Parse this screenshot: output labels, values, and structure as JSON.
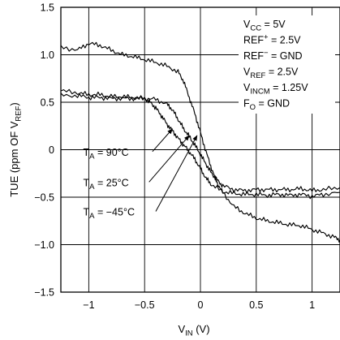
{
  "chart_data": {
    "type": "line",
    "xlabel": {
      "main": "V",
      "sub": "IN",
      "tail": " (V)"
    },
    "ylabel": {
      "main": "TUE (ppm OF V",
      "sub": "REF",
      "tail": ")"
    },
    "xlim": [
      -1.25,
      1.25
    ],
    "ylim": [
      -1.5,
      1.5
    ],
    "x_ticks": [
      {
        "value": -1,
        "label": "−1"
      },
      {
        "value": -0.5,
        "label": "−0.5"
      },
      {
        "value": 0,
        "label": "0"
      },
      {
        "value": 0.5,
        "label": "0.5"
      },
      {
        "value": 1,
        "label": "1"
      }
    ],
    "y_ticks": [
      {
        "value": 1.5,
        "label": "1.5"
      },
      {
        "value": 1.0,
        "label": "1.0"
      },
      {
        "value": 0.5,
        "label": "0.5"
      },
      {
        "value": 0,
        "label": "0"
      },
      {
        "value": -0.5,
        "label": "−0.5"
      },
      {
        "value": -1.0,
        "label": "−1.0"
      },
      {
        "value": -1.5,
        "label": "−1.5"
      }
    ],
    "grid": true,
    "conditions": [
      {
        "main": "V",
        "sub": "CC",
        "sup": "",
        "tail": " = 5V"
      },
      {
        "main": "REF",
        "sub": "",
        "sup": "+",
        "tail": " = 2.5V"
      },
      {
        "main": "REF",
        "sub": "",
        "sup": "−",
        "tail": " = GND"
      },
      {
        "main": "V",
        "sub": "REF",
        "sup": "",
        "tail": " = 2.5V"
      },
      {
        "main": "V",
        "sub": "INCM",
        "sup": "",
        "tail": " = 1.25V"
      },
      {
        "main": "F",
        "sub": "O",
        "sup": "",
        "tail": " = GND"
      }
    ],
    "series": [
      {
        "name": "T_A = 90°C",
        "label": {
          "main": "T",
          "sub": "A",
          "tail": " = 90°C"
        },
        "x": [
          -1.25,
          -1.1,
          -1.0,
          -0.9,
          -0.8,
          -0.7,
          -0.6,
          -0.5,
          -0.45,
          -0.4,
          -0.35,
          -0.3,
          -0.25,
          -0.2,
          -0.15,
          -0.1,
          -0.05,
          0.0,
          0.05,
          0.1,
          0.2,
          0.3,
          0.4,
          0.5,
          0.6,
          0.7,
          0.8,
          0.9,
          1.0,
          1.1,
          1.25
        ],
        "y": [
          0.62,
          0.6,
          0.58,
          0.58,
          0.56,
          0.56,
          0.55,
          0.54,
          0.5,
          0.44,
          0.36,
          0.27,
          0.2,
          0.12,
          0.05,
          -0.02,
          -0.1,
          -0.2,
          -0.3,
          -0.37,
          -0.44,
          -0.46,
          -0.47,
          -0.47,
          -0.48,
          -0.47,
          -0.48,
          -0.47,
          -0.49,
          -0.47,
          -0.45
        ]
      },
      {
        "name": "T_A = 25°C",
        "label": {
          "main": "T",
          "sub": "A",
          "tail": " = 25°C"
        },
        "x": [
          -1.25,
          -1.1,
          -1.0,
          -0.9,
          -0.8,
          -0.7,
          -0.6,
          -0.5,
          -0.4,
          -0.3,
          -0.25,
          -0.2,
          -0.15,
          -0.1,
          -0.05,
          0.0,
          0.05,
          0.1,
          0.15,
          0.2,
          0.3,
          0.4,
          0.5,
          0.6,
          0.7,
          0.8,
          0.9,
          1.0,
          1.1,
          1.25
        ],
        "y": [
          0.57,
          0.57,
          0.55,
          0.55,
          0.54,
          0.54,
          0.54,
          0.54,
          0.53,
          0.48,
          0.42,
          0.32,
          0.22,
          0.14,
          0.05,
          -0.05,
          -0.15,
          -0.25,
          -0.32,
          -0.38,
          -0.42,
          -0.43,
          -0.42,
          -0.42,
          -0.42,
          -0.42,
          -0.41,
          -0.43,
          -0.42,
          -0.4
        ]
      },
      {
        "name": "T_A = −45°C",
        "label": {
          "main": "T",
          "sub": "A",
          "tail": " = −45°C"
        },
        "x": [
          -1.25,
          -1.1,
          -1.0,
          -0.9,
          -0.8,
          -0.7,
          -0.6,
          -0.5,
          -0.4,
          -0.3,
          -0.2,
          -0.15,
          -0.1,
          -0.05,
          0.0,
          0.05,
          0.1,
          0.15,
          0.2,
          0.3,
          0.4,
          0.5,
          0.6,
          0.7,
          0.8,
          0.9,
          1.0,
          1.1,
          1.2,
          1.25
        ],
        "y": [
          1.08,
          1.05,
          1.12,
          1.1,
          1.05,
          1.0,
          0.98,
          0.95,
          0.92,
          0.88,
          0.82,
          0.72,
          0.55,
          0.38,
          0.18,
          -0.02,
          -0.2,
          -0.35,
          -0.45,
          -0.6,
          -0.67,
          -0.72,
          -0.75,
          -0.77,
          -0.79,
          -0.8,
          -0.84,
          -0.88,
          -0.92,
          -0.95
        ]
      }
    ],
    "label_anchors": [
      {
        "text_at": [
          -1.05,
          -0.02
        ],
        "arrow_from": [
          -0.43,
          -0.02
        ],
        "arrow_to": [
          -0.25,
          0.22
        ]
      },
      {
        "text_at": [
          -1.05,
          -0.34
        ],
        "arrow_from": [
          -0.46,
          -0.34
        ],
        "arrow_to": [
          -0.1,
          0.15
        ]
      },
      {
        "text_at": [
          -1.05,
          -0.65
        ],
        "arrow_from": [
          -0.4,
          -0.65
        ],
        "arrow_to": [
          -0.03,
          0.15
        ]
      }
    ]
  }
}
